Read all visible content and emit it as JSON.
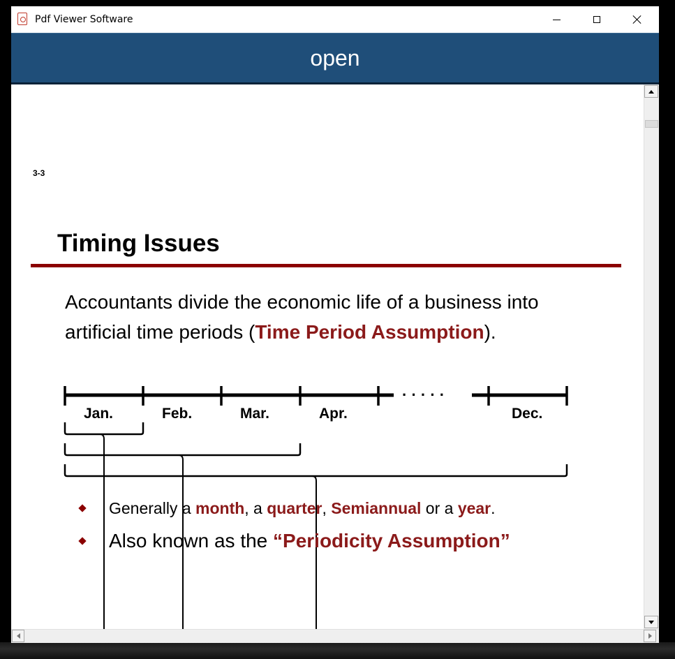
{
  "window": {
    "title": "Pdf Viewer Software",
    "icon": "pdf-icon"
  },
  "toolbar": {
    "open_label": "open"
  },
  "slide": {
    "number": "3-3",
    "title": "Timing Issues",
    "intro_part1": "Accountants divide the economic life of a business into artificial time periods  (",
    "intro_highlight": "Time Period Assumption",
    "intro_part2": ").",
    "timeline": {
      "months": [
        "Jan.",
        "Feb.",
        "Mar.",
        "Apr.",
        "Dec."
      ],
      "ellipsis": "· · · · ·"
    },
    "bullets": [
      {
        "parts": [
          {
            "text": "Generally a ",
            "hl": false
          },
          {
            "text": "month",
            "hl": true
          },
          {
            "text": ", a ",
            "hl": false
          },
          {
            "text": "quarter",
            "hl": true
          },
          {
            "text": ", ",
            "hl": false
          },
          {
            "text": "Semiannual",
            "hl": true
          },
          {
            "text": " or a ",
            "hl": false
          },
          {
            "text": "year",
            "hl": true
          },
          {
            "text": ".",
            "hl": false
          }
        ]
      },
      {
        "parts": [
          {
            "text": "Also known as the ",
            "hl": false
          },
          {
            "text": "“Periodicity Assumption”",
            "hl": true
          }
        ]
      }
    ]
  },
  "colors": {
    "toolbar_bg": "#1f4e79",
    "accent_red": "#8b0000"
  }
}
